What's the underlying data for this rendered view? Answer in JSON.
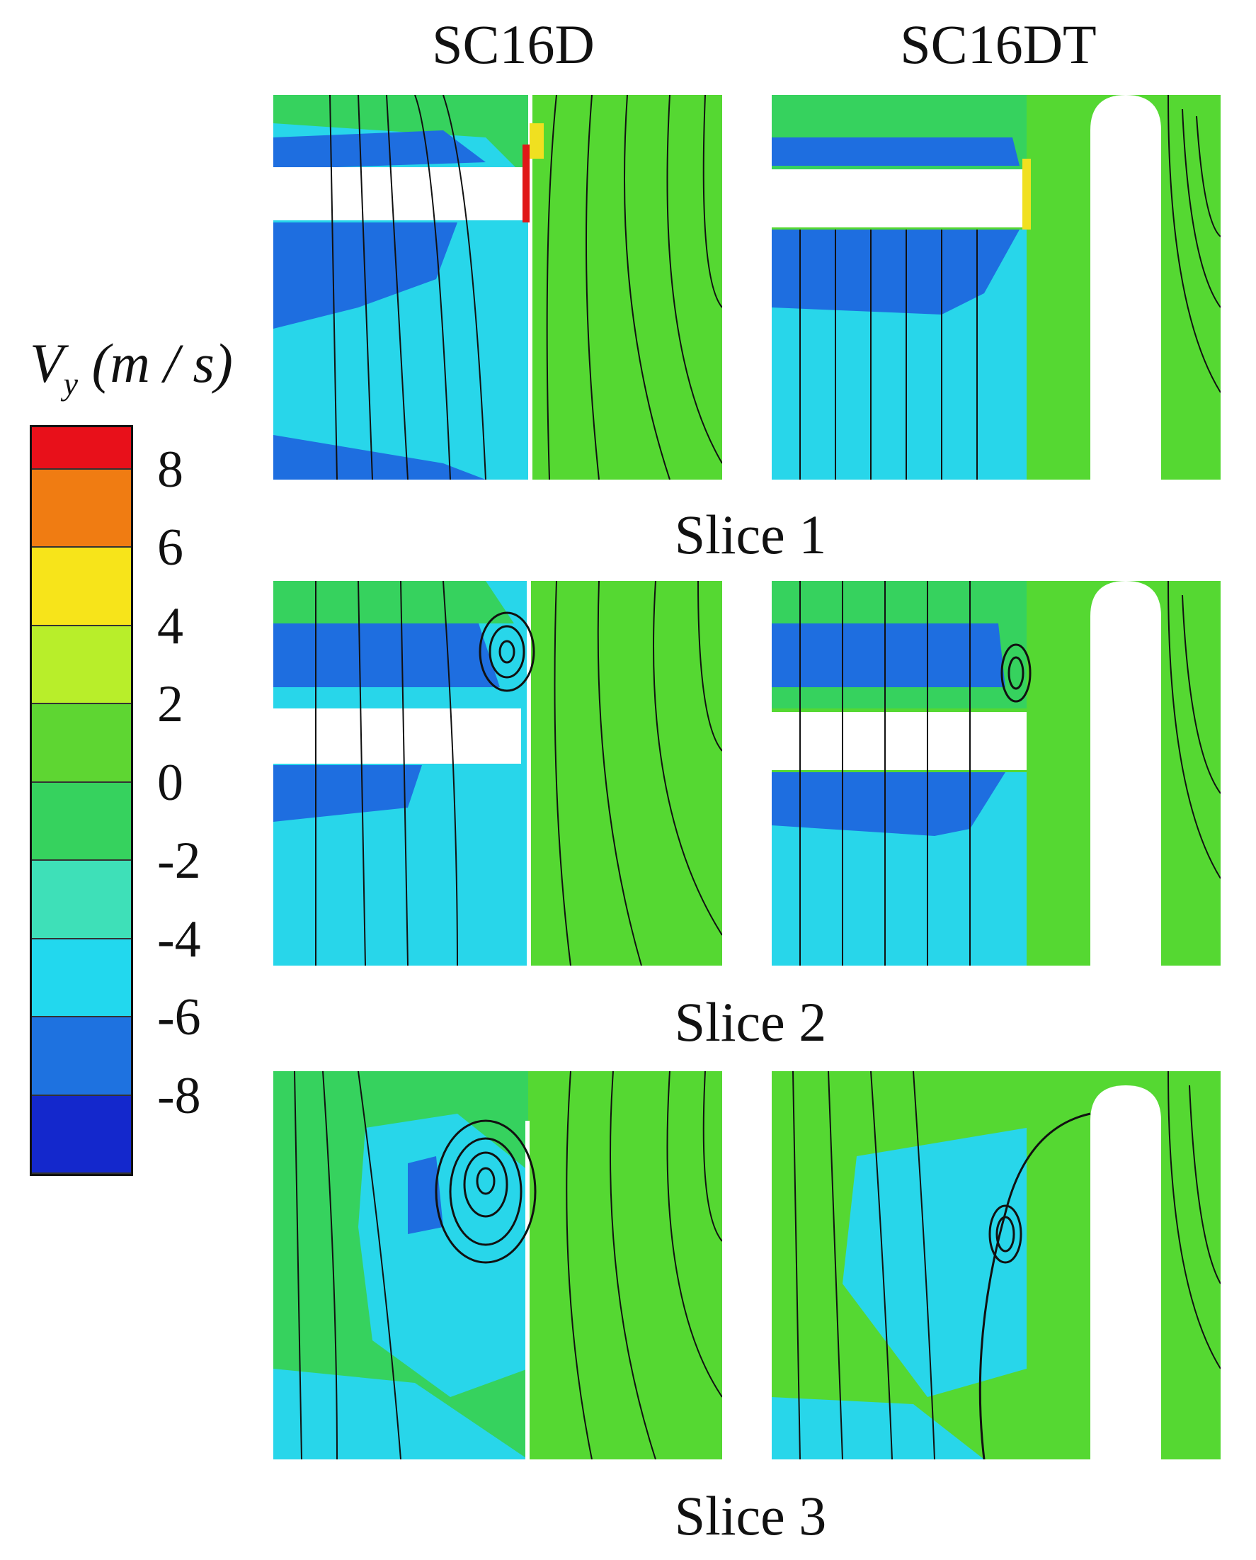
{
  "columns": [
    "SC16D",
    "SC16DT"
  ],
  "slices": [
    "Slice 1",
    "Slice 2",
    "Slice 3"
  ],
  "legend": {
    "title_main": "V",
    "title_sub": "y",
    "title_unit": "(m / s)",
    "ticks": [
      "8",
      "6",
      "4",
      "2",
      "0",
      "-2",
      "-4",
      "-6",
      "-8"
    ],
    "colors": [
      "#e8101a",
      "#f07c12",
      "#f7e41a",
      "#b8ee2a",
      "#5ed632",
      "#36d25e",
      "#3ee0b8",
      "#22d8ee",
      "#1e72e0",
      "#1428cc"
    ]
  },
  "field_colors": {
    "green": "#55d832",
    "lime": "#9ae82e",
    "cyan": "#28d6ea",
    "blue": "#1e6ee0",
    "deep_blue": "#1a3ed6",
    "red": "#e01818",
    "yellow": "#f0e020",
    "streamline": "#111111"
  }
}
